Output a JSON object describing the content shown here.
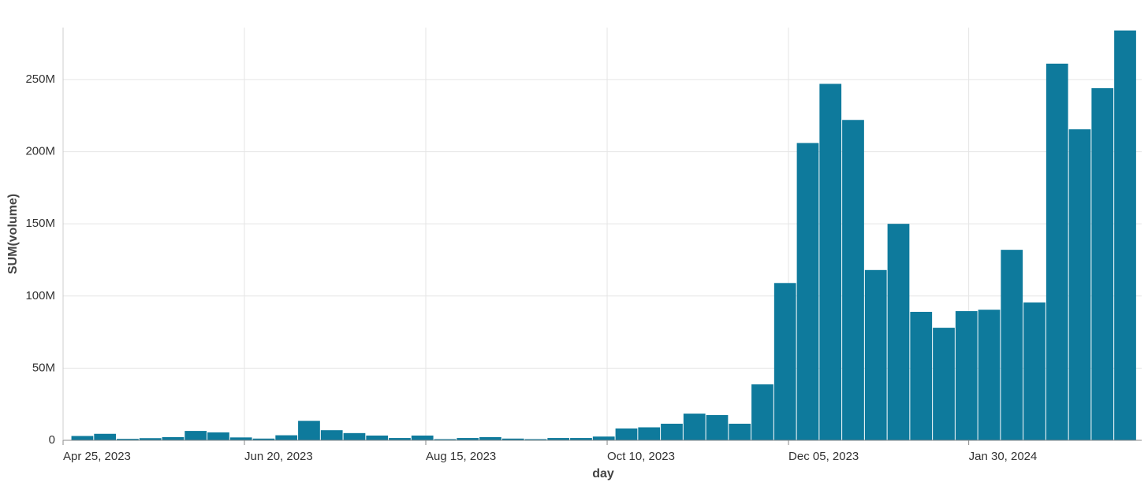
{
  "chart_data": {
    "type": "bar",
    "x_label": "day",
    "y_label": "SUM(volume)",
    "color": "#0e7a9c",
    "grid": true,
    "categories": [
      null,
      null,
      null,
      null,
      null,
      null,
      null,
      null,
      null,
      null,
      null,
      null,
      null,
      null,
      null,
      null,
      null,
      null,
      null,
      null,
      null,
      null,
      null,
      null,
      null,
      null,
      null,
      null,
      null,
      null,
      null,
      null,
      null,
      null,
      null,
      null,
      null,
      null,
      null,
      null,
      null,
      null,
      null,
      null,
      null,
      null,
      null
    ],
    "values": [
      3000000,
      4500000,
      1000000,
      1500000,
      2200000,
      6500000,
      5500000,
      2000000,
      1200000,
      3500000,
      13500000,
      7000000,
      5000000,
      3300000,
      1600000,
      3300000,
      800000,
      1600000,
      2200000,
      1200000,
      800000,
      1600000,
      1600000,
      2600000,
      8200000,
      9000000,
      11500000,
      18500000,
      17500000,
      11500000,
      38800000,
      109000000,
      206000000,
      247000000,
      222000000,
      118000000,
      150000000,
      89000000,
      78000000,
      89500000,
      90500000,
      132000000,
      95500000,
      261000000,
      215500000,
      244000000,
      284000000
    ],
    "xlim": [
      -0.85,
      46.73
    ],
    "xticks": [
      {
        "value": -0.85,
        "label": "Apr 25, 2023"
      },
      {
        "value": 7.15,
        "label": "Jun 20, 2023"
      },
      {
        "value": 15.15,
        "label": "Aug 15, 2023"
      },
      {
        "value": 23.15,
        "label": "Oct 10, 2023"
      },
      {
        "value": 31.15,
        "label": "Dec 05, 2023"
      },
      {
        "value": 39.1,
        "label": "Jan 30, 2024"
      }
    ],
    "ylim": [
      0,
      286000000
    ],
    "yticks": [
      0,
      {
        "value": 50000000,
        "label": "50M"
      },
      {
        "value": 100000000,
        "label": "100M"
      },
      {
        "value": 150000000,
        "label": "150M"
      },
      {
        "value": 200000000,
        "label": "200M"
      },
      {
        "value": 250000000,
        "label": "250M"
      }
    ]
  }
}
